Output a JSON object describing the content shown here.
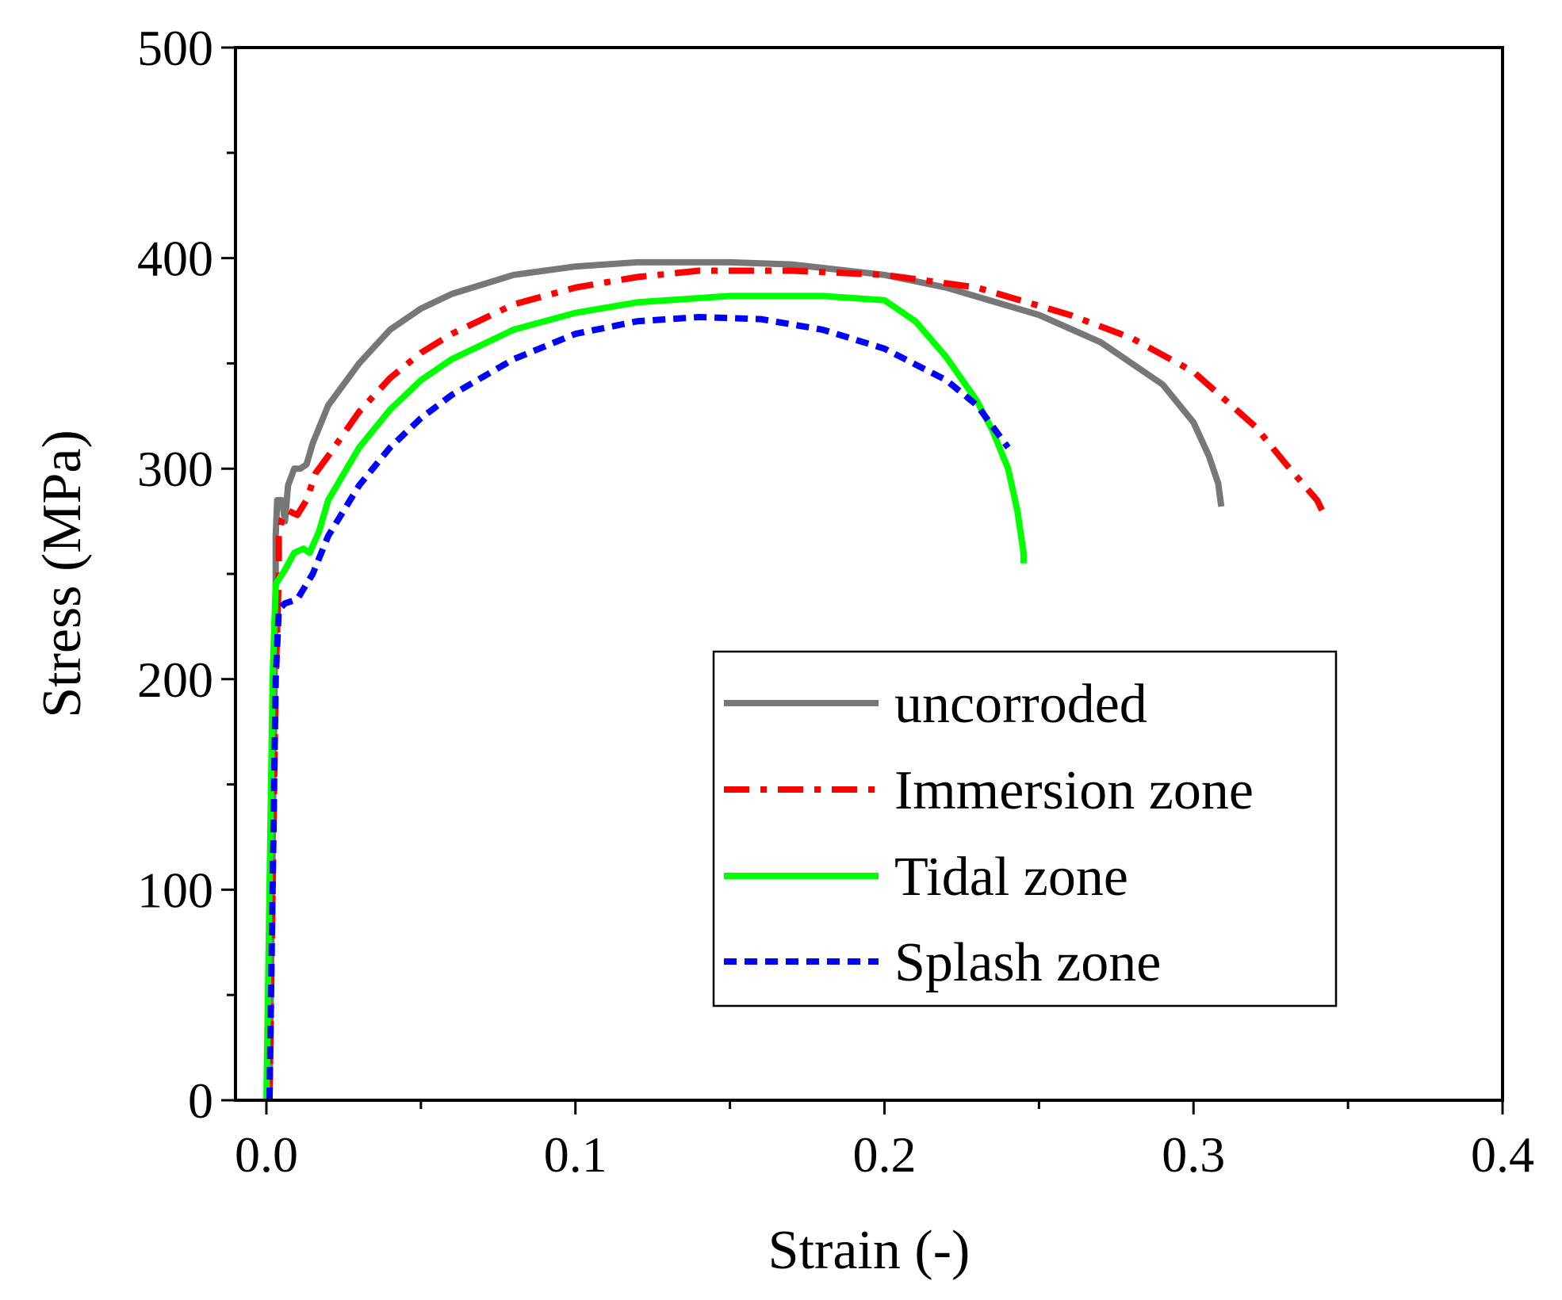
{
  "chart_data": {
    "type": "line",
    "title": "",
    "xlabel": "Strain (-)",
    "ylabel": "Stress (MPa)",
    "xlim": [
      -0.01,
      0.4
    ],
    "ylim": [
      0,
      500
    ],
    "xticks": [
      0.0,
      0.1,
      0.2,
      0.3,
      0.4
    ],
    "xtick_labels": [
      "0.0",
      "0.1",
      "0.2",
      "0.3",
      "0.4"
    ],
    "xminor": [
      0.05,
      0.15,
      0.25,
      0.35
    ],
    "yticks": [
      0,
      100,
      200,
      300,
      400,
      500
    ],
    "ytick_labels": [
      "0",
      "100",
      "200",
      "300",
      "400",
      "500"
    ],
    "yminor": [
      50,
      150,
      250,
      350,
      450
    ],
    "grid": false,
    "legend_position": "bottom-right",
    "series": [
      {
        "name": "uncorroded",
        "color": "#777777",
        "dash": "solid",
        "points": [
          [
            0.001,
            0
          ],
          [
            0.002,
            120
          ],
          [
            0.003,
            240
          ],
          [
            0.003,
            268
          ],
          [
            0.0035,
            285
          ],
          [
            0.005,
            285
          ],
          [
            0.006,
            275
          ],
          [
            0.007,
            292
          ],
          [
            0.009,
            300
          ],
          [
            0.011,
            300
          ],
          [
            0.013,
            302
          ],
          [
            0.015,
            312
          ],
          [
            0.02,
            330
          ],
          [
            0.03,
            350
          ],
          [
            0.04,
            366
          ],
          [
            0.05,
            376
          ],
          [
            0.06,
            383
          ],
          [
            0.08,
            392
          ],
          [
            0.1,
            396
          ],
          [
            0.12,
            398
          ],
          [
            0.15,
            398
          ],
          [
            0.17,
            397
          ],
          [
            0.2,
            392
          ],
          [
            0.22,
            386
          ],
          [
            0.25,
            373
          ],
          [
            0.27,
            360
          ],
          [
            0.29,
            340
          ],
          [
            0.3,
            322
          ],
          [
            0.305,
            306
          ],
          [
            0.308,
            293
          ],
          [
            0.309,
            282
          ]
        ]
      },
      {
        "name": "Immersion zone",
        "color": "#ff0000",
        "dash": "dashdot",
        "points": [
          [
            0.001,
            0
          ],
          [
            0.002,
            100
          ],
          [
            0.003,
            200
          ],
          [
            0.004,
            250
          ],
          [
            0.004,
            268
          ],
          [
            0.005,
            276
          ],
          [
            0.007,
            280
          ],
          [
            0.01,
            278
          ],
          [
            0.013,
            285
          ],
          [
            0.016,
            298
          ],
          [
            0.02,
            306
          ],
          [
            0.03,
            327
          ],
          [
            0.04,
            343
          ],
          [
            0.05,
            355
          ],
          [
            0.06,
            364
          ],
          [
            0.08,
            378
          ],
          [
            0.1,
            386
          ],
          [
            0.12,
            391
          ],
          [
            0.14,
            394
          ],
          [
            0.17,
            394
          ],
          [
            0.2,
            392
          ],
          [
            0.23,
            386
          ],
          [
            0.26,
            373
          ],
          [
            0.28,
            362
          ],
          [
            0.3,
            346
          ],
          [
            0.32,
            320
          ],
          [
            0.33,
            302
          ],
          [
            0.34,
            285
          ],
          [
            0.343,
            276
          ]
        ]
      },
      {
        "name": "Tidal zone",
        "color": "#00ff00",
        "dash": "solid",
        "points": [
          [
            0.0,
            0
          ],
          [
            0.001,
            100
          ],
          [
            0.002,
            200
          ],
          [
            0.003,
            245
          ],
          [
            0.006,
            252
          ],
          [
            0.009,
            260
          ],
          [
            0.012,
            262
          ],
          [
            0.014,
            260
          ],
          [
            0.017,
            270
          ],
          [
            0.02,
            285
          ],
          [
            0.03,
            310
          ],
          [
            0.04,
            328
          ],
          [
            0.05,
            342
          ],
          [
            0.06,
            352
          ],
          [
            0.08,
            366
          ],
          [
            0.1,
            374
          ],
          [
            0.12,
            379
          ],
          [
            0.15,
            382
          ],
          [
            0.18,
            382
          ],
          [
            0.2,
            380
          ],
          [
            0.21,
            370
          ],
          [
            0.22,
            353
          ],
          [
            0.23,
            332
          ],
          [
            0.235,
            318
          ],
          [
            0.24,
            300
          ],
          [
            0.243,
            280
          ],
          [
            0.245,
            260
          ],
          [
            0.245,
            255
          ]
        ]
      },
      {
        "name": "Splash zone",
        "color": "#0000ff",
        "dash": "dash",
        "points": [
          [
            0.001,
            0
          ],
          [
            0.002,
            100
          ],
          [
            0.003,
            200
          ],
          [
            0.004,
            233
          ],
          [
            0.006,
            236
          ],
          [
            0.01,
            238
          ],
          [
            0.015,
            250
          ],
          [
            0.02,
            268
          ],
          [
            0.03,
            292
          ],
          [
            0.04,
            310
          ],
          [
            0.05,
            324
          ],
          [
            0.06,
            335
          ],
          [
            0.08,
            352
          ],
          [
            0.1,
            364
          ],
          [
            0.12,
            370
          ],
          [
            0.14,
            372
          ],
          [
            0.16,
            371
          ],
          [
            0.18,
            366
          ],
          [
            0.2,
            357
          ],
          [
            0.22,
            342
          ],
          [
            0.23,
            330
          ],
          [
            0.24,
            310
          ]
        ]
      }
    ]
  }
}
